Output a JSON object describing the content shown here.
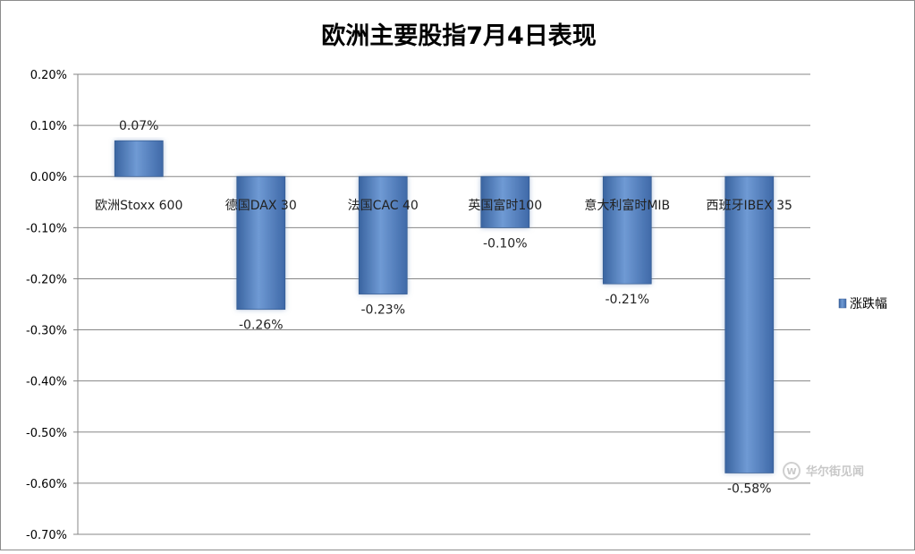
{
  "chart_data": {
    "type": "bar",
    "title": "欧洲主要股指7月4日表现",
    "categories": [
      "欧洲Stoxx 600",
      "德国DAX 30",
      "法国CAC 40",
      "英国富时100",
      "意大利富时MIB",
      "西班牙IBEX 35"
    ],
    "series": [
      {
        "name": "涨跌幅",
        "values": [
          0.07,
          -0.26,
          -0.23,
          -0.1,
          -0.21,
          -0.58
        ],
        "data_labels": [
          "0.07%",
          "-0.26%",
          "-0.23%",
          "-0.10%",
          "-0.21%",
          "-0.58%"
        ]
      }
    ],
    "ylim": [
      -0.7,
      0.2
    ],
    "yticks": [
      "0.20%",
      "0.10%",
      "0.00%",
      "-0.10%",
      "-0.20%",
      "-0.30%",
      "-0.40%",
      "-0.50%",
      "-0.60%",
      "-0.70%"
    ],
    "ytick_values": [
      0.2,
      0.1,
      0.0,
      -0.1,
      -0.2,
      -0.3,
      -0.4,
      -0.5,
      -0.6,
      -0.7
    ],
    "grid": true,
    "legend_position": "right",
    "bar_color": "#4f81bd"
  },
  "watermark": {
    "text": "华尔街见闻",
    "icon": "wallstreetcn-logo-icon"
  }
}
